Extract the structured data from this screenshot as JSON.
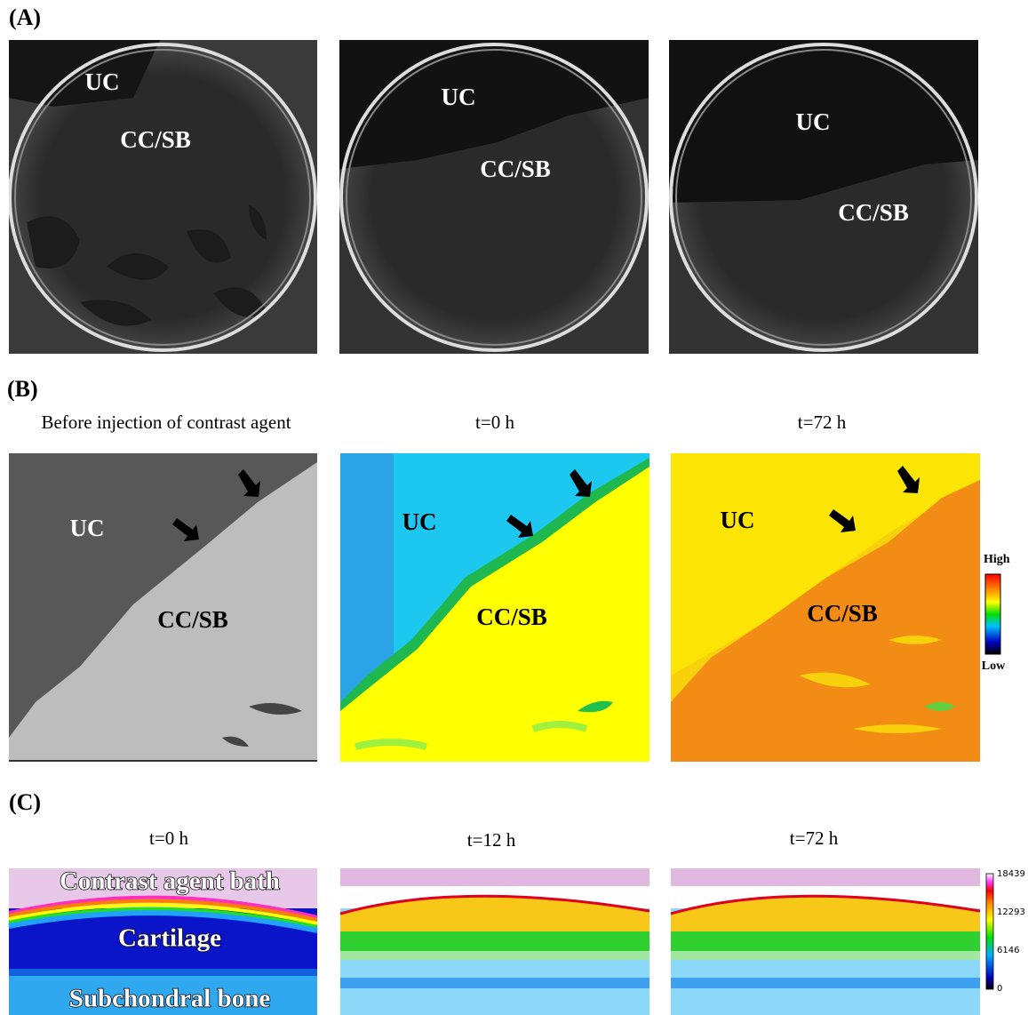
{
  "panels": [
    {
      "label": "(A)",
      "images": [
        [
          "UC",
          "CC/SB"
        ],
        [
          "UC",
          "CC/SB"
        ],
        [
          "UC",
          "CC/SB"
        ]
      ]
    },
    {
      "label": "(B)",
      "captions": [
        "Before injection of contrast agent",
        "t=0 h",
        "t=72 h"
      ],
      "images": [
        [
          "UC",
          "CC/SB"
        ],
        [
          "UC",
          "CC/SB"
        ],
        [
          "UC",
          "CC/SB"
        ]
      ],
      "colorbar": {
        "high": "High",
        "low": "Low"
      }
    },
    {
      "label": "(C)",
      "captions": [
        "t=0 h",
        "t=12 h",
        "t=72 h"
      ],
      "images": [
        [
          "Contrast agent bath",
          "Cartilage",
          "Subchondral bone"
        ]
      ],
      "colorbar_ticks": [
        "18439",
        "12293",
        "6146",
        "0"
      ]
    }
  ]
}
